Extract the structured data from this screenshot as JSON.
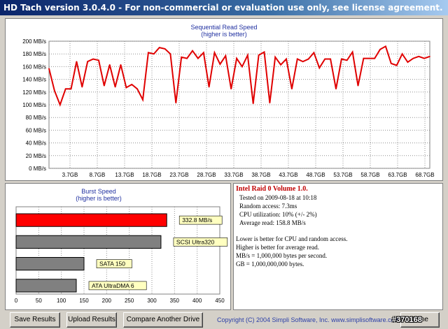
{
  "window": {
    "title": "HD Tach version 3.0.4.0  -  For non-commercial or evaluation use only, see license agreement."
  },
  "chart_data": [
    {
      "type": "line",
      "title": "Sequential Read Speed",
      "subtitle": "(higher is better)",
      "ylim": [
        0,
        200
      ],
      "y_ticks": [
        "0 MB/s",
        "20 MB/s",
        "40 MB/s",
        "60 MB/s",
        "80 MB/s",
        "100 MB/s",
        "120 MB/s",
        "140 MB/s",
        "160 MB/s",
        "180 MB/s",
        "200 MB/s"
      ],
      "x_ticks": [
        "3.7GB",
        "8.7GB",
        "13.7GB",
        "18.7GB",
        "23.7GB",
        "28.7GB",
        "33.7GB",
        "38.7GB",
        "43.7GB",
        "48.7GB",
        "53.7GB",
        "58.7GB",
        "63.7GB",
        "68.7GB"
      ],
      "grid": true,
      "color": "#e00000",
      "values": [
        157,
        122,
        100,
        125,
        125,
        168,
        128,
        168,
        172,
        170,
        130,
        163,
        128,
        163,
        127,
        132,
        125,
        108,
        182,
        180,
        190,
        188,
        180,
        103,
        175,
        173,
        185,
        173,
        182,
        128,
        182,
        164,
        177,
        125,
        173,
        160,
        178,
        102,
        178,
        183,
        103,
        175,
        163,
        172,
        125,
        172,
        168,
        172,
        182,
        158,
        172,
        172,
        125,
        172,
        170,
        183,
        130,
        173,
        173,
        173,
        187,
        192,
        165,
        162,
        180,
        167,
        173,
        176,
        173,
        176
      ]
    },
    {
      "type": "bar",
      "title": "Burst Speed",
      "subtitle": "(higher is better)",
      "xlim": [
        0,
        450
      ],
      "x_ticks": [
        "0",
        "50",
        "100",
        "150",
        "200",
        "250",
        "300",
        "350",
        "400",
        "450"
      ],
      "bars": [
        {
          "label": "332.8 MB/s",
          "value": 332.8,
          "color": "#ff0000"
        },
        {
          "label": "SCSI Ultra320",
          "value": 320,
          "color": "#808080"
        },
        {
          "label": "SATA 150",
          "value": 150,
          "color": "#808080"
        },
        {
          "label": "ATA UltraDMA 6",
          "value": 133,
          "color": "#808080"
        }
      ]
    }
  ],
  "info": {
    "title": "Intel Raid 0 Volume 1.0.",
    "tested": "Tested on 2009-08-18 at 10:18",
    "random_access": "Random access: 7.3ms",
    "cpu": "CPU utilization: 10% (+/- 2%)",
    "average": "Average read: 158.8 MB/s",
    "note1": "Lower is better for CPU and random access.",
    "note2": "Higher is better for average read.",
    "note3": "MB/s = 1,000,000 bytes per second.",
    "note4": "GB = 1,000,000,000 bytes."
  },
  "buttons": {
    "save": "Save Results",
    "upload": "Upload Results",
    "compare": "Compare Another Drive",
    "done": "Done"
  },
  "footer": {
    "copyright": "Copyright (C) 2004 Simpli Software, Inc. www.simplisoftware.com",
    "watermark": "#370168"
  }
}
